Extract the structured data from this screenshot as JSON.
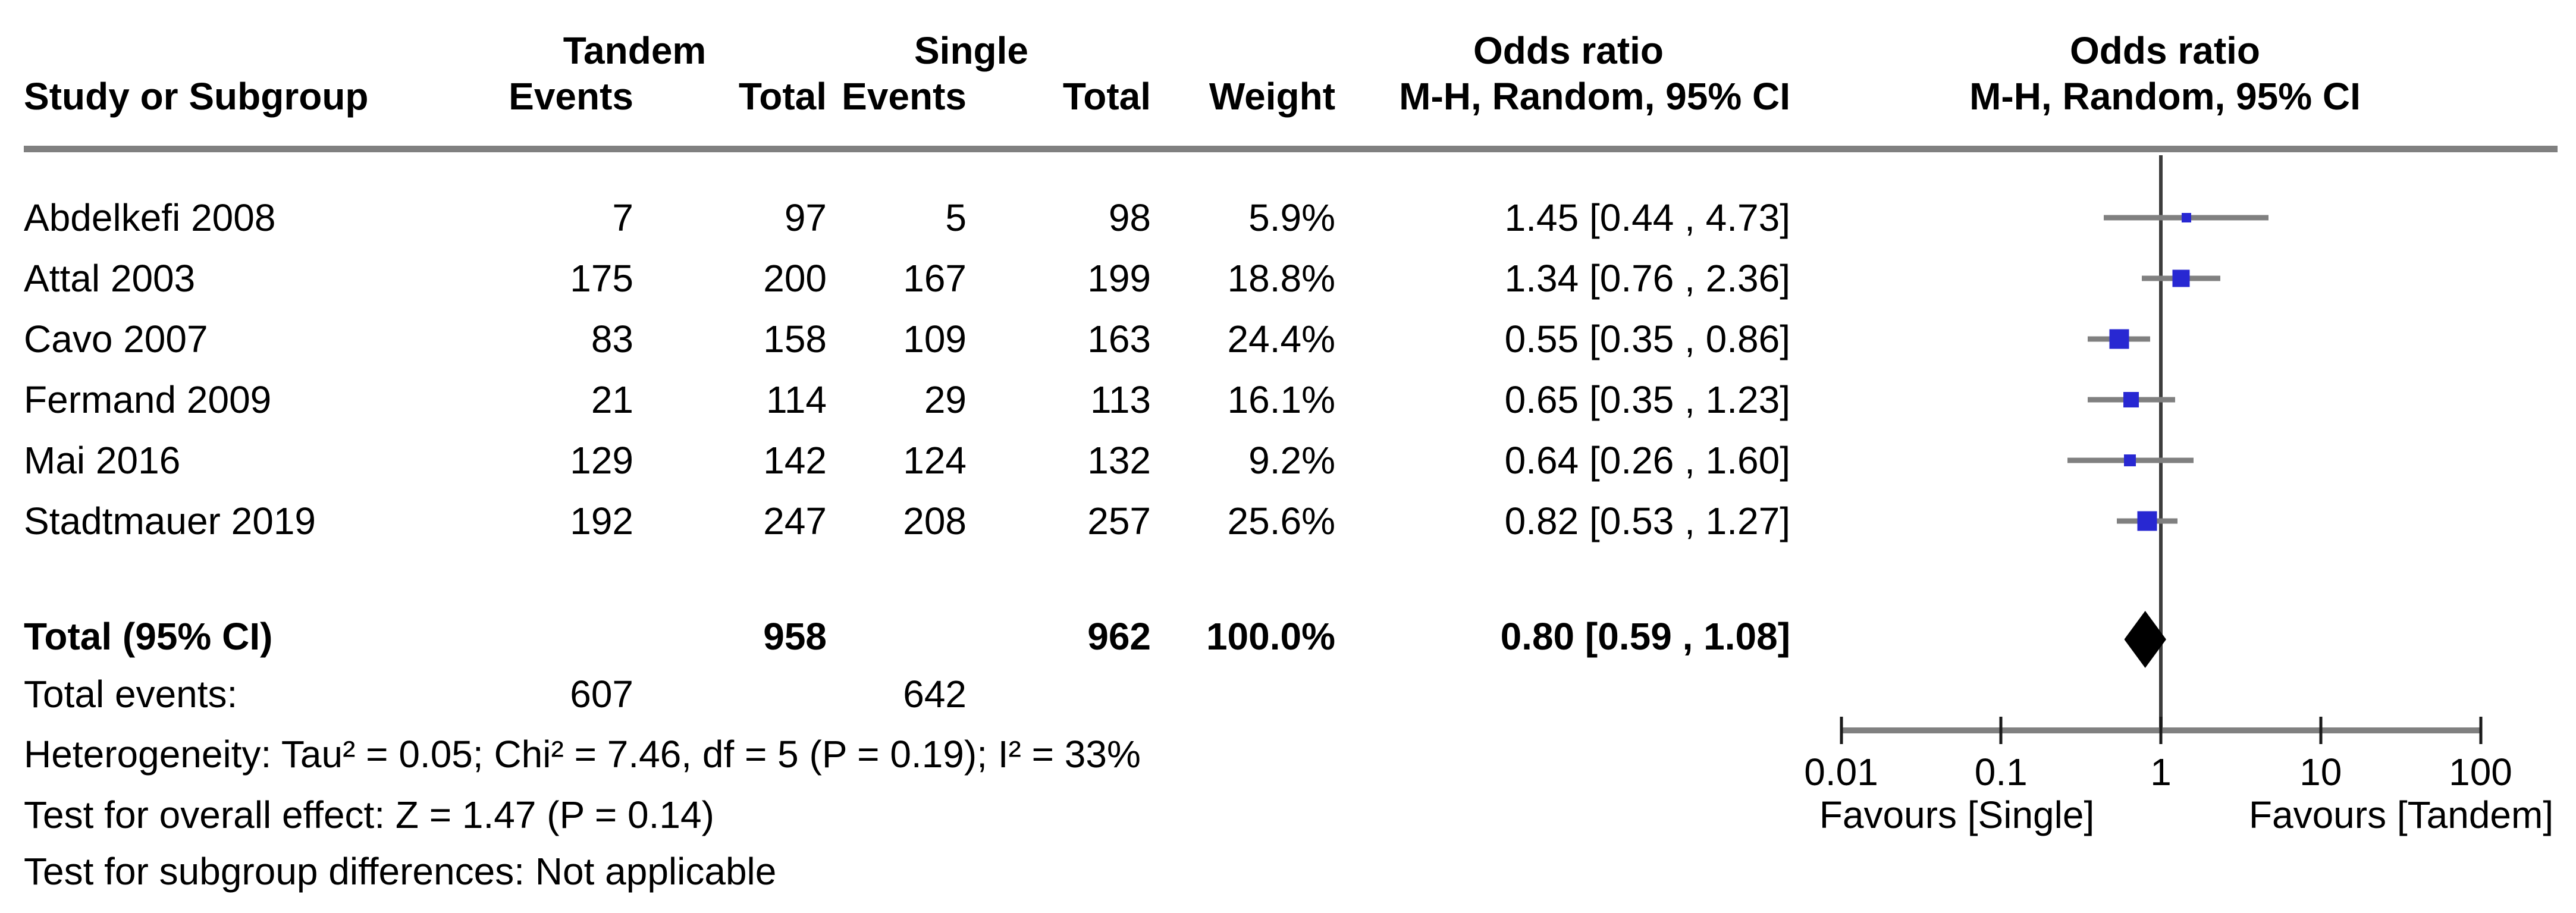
{
  "chart_data": {
    "type": "forest",
    "x_scale": "log10",
    "xlim": [
      0.01,
      100
    ],
    "x_ticks": [
      0.01,
      0.1,
      1,
      10,
      100
    ],
    "x_tick_labels": [
      "0.01",
      "0.1",
      "1",
      "10",
      "100"
    ],
    "grid": false,
    "groups": {
      "experimental": "Tandem",
      "control": "Single"
    },
    "headers": {
      "study": "Study or Subgroup",
      "events": "Events",
      "total": "Total",
      "weight": "Weight",
      "odds_ratio": "Odds ratio",
      "method": "M-H, Random, 95% CI"
    },
    "studies": [
      {
        "name": "Abdelkefi 2008",
        "tandem_events": "7",
        "tandem_total": "97",
        "single_events": "5",
        "single_total": "98",
        "weight": "5.9%",
        "weight_pct": 5.9,
        "or": 1.45,
        "ci_low": 0.44,
        "ci_high": 4.73,
        "ci_text": "1.45 [0.44 , 4.73]"
      },
      {
        "name": "Attal 2003",
        "tandem_events": "175",
        "tandem_total": "200",
        "single_events": "167",
        "single_total": "199",
        "weight": "18.8%",
        "weight_pct": 18.8,
        "or": 1.34,
        "ci_low": 0.76,
        "ci_high": 2.36,
        "ci_text": "1.34 [0.76 , 2.36]"
      },
      {
        "name": "Cavo 2007",
        "tandem_events": "83",
        "tandem_total": "158",
        "single_events": "109",
        "single_total": "163",
        "weight": "24.4%",
        "weight_pct": 24.4,
        "or": 0.55,
        "ci_low": 0.35,
        "ci_high": 0.86,
        "ci_text": "0.55 [0.35 , 0.86]"
      },
      {
        "name": "Fermand 2009",
        "tandem_events": "21",
        "tandem_total": "114",
        "single_events": "29",
        "single_total": "113",
        "weight": "16.1%",
        "weight_pct": 16.1,
        "or": 0.65,
        "ci_low": 0.35,
        "ci_high": 1.23,
        "ci_text": "0.65 [0.35 , 1.23]"
      },
      {
        "name": "Mai 2016",
        "tandem_events": "129",
        "tandem_total": "142",
        "single_events": "124",
        "single_total": "132",
        "weight": "9.2%",
        "weight_pct": 9.2,
        "or": 0.64,
        "ci_low": 0.26,
        "ci_high": 1.6,
        "ci_text": "0.64 [0.26 , 1.60]"
      },
      {
        "name": "Stadtmauer 2019",
        "tandem_events": "192",
        "tandem_total": "247",
        "single_events": "208",
        "single_total": "257",
        "weight": "25.6%",
        "weight_pct": 25.6,
        "or": 0.82,
        "ci_low": 0.53,
        "ci_high": 1.27,
        "ci_text": "0.82 [0.53 , 1.27]"
      }
    ],
    "total": {
      "label": "Total (95% CI)",
      "tandem_total": "958",
      "single_total": "962",
      "weight": "100.0%",
      "or": 0.8,
      "ci_low": 0.59,
      "ci_high": 1.08,
      "ci_text": "0.80 [0.59 , 1.08]"
    },
    "total_events": {
      "label": "Total events:",
      "tandem": "607",
      "single": "642"
    },
    "stats": {
      "tau2": 0.05,
      "chi2": 7.46,
      "df": 5,
      "p_heterogeneity": 0.19,
      "i2": "33%",
      "z": 1.47,
      "p_overall": 0.14
    },
    "footnotes": {
      "heterogeneity": "Heterogeneity: Tau² = 0.05; Chi² = 7.46, df = 5 (P = 0.19); I² = 33%",
      "overall": "Test for overall effect: Z = 1.47 (P = 0.14)",
      "subgroup": "Test for subgroup differences: Not applicable"
    },
    "favours": {
      "left": "Favours [Single]",
      "right": "Favours [Tandem]"
    },
    "colors": {
      "square": "#2828d2",
      "diamond": "#000000",
      "ci_line": "#808080",
      "axis_line": "#808080",
      "header_rule": "#808080",
      "center_line": "#3c3c3c",
      "text": "#000000"
    }
  }
}
